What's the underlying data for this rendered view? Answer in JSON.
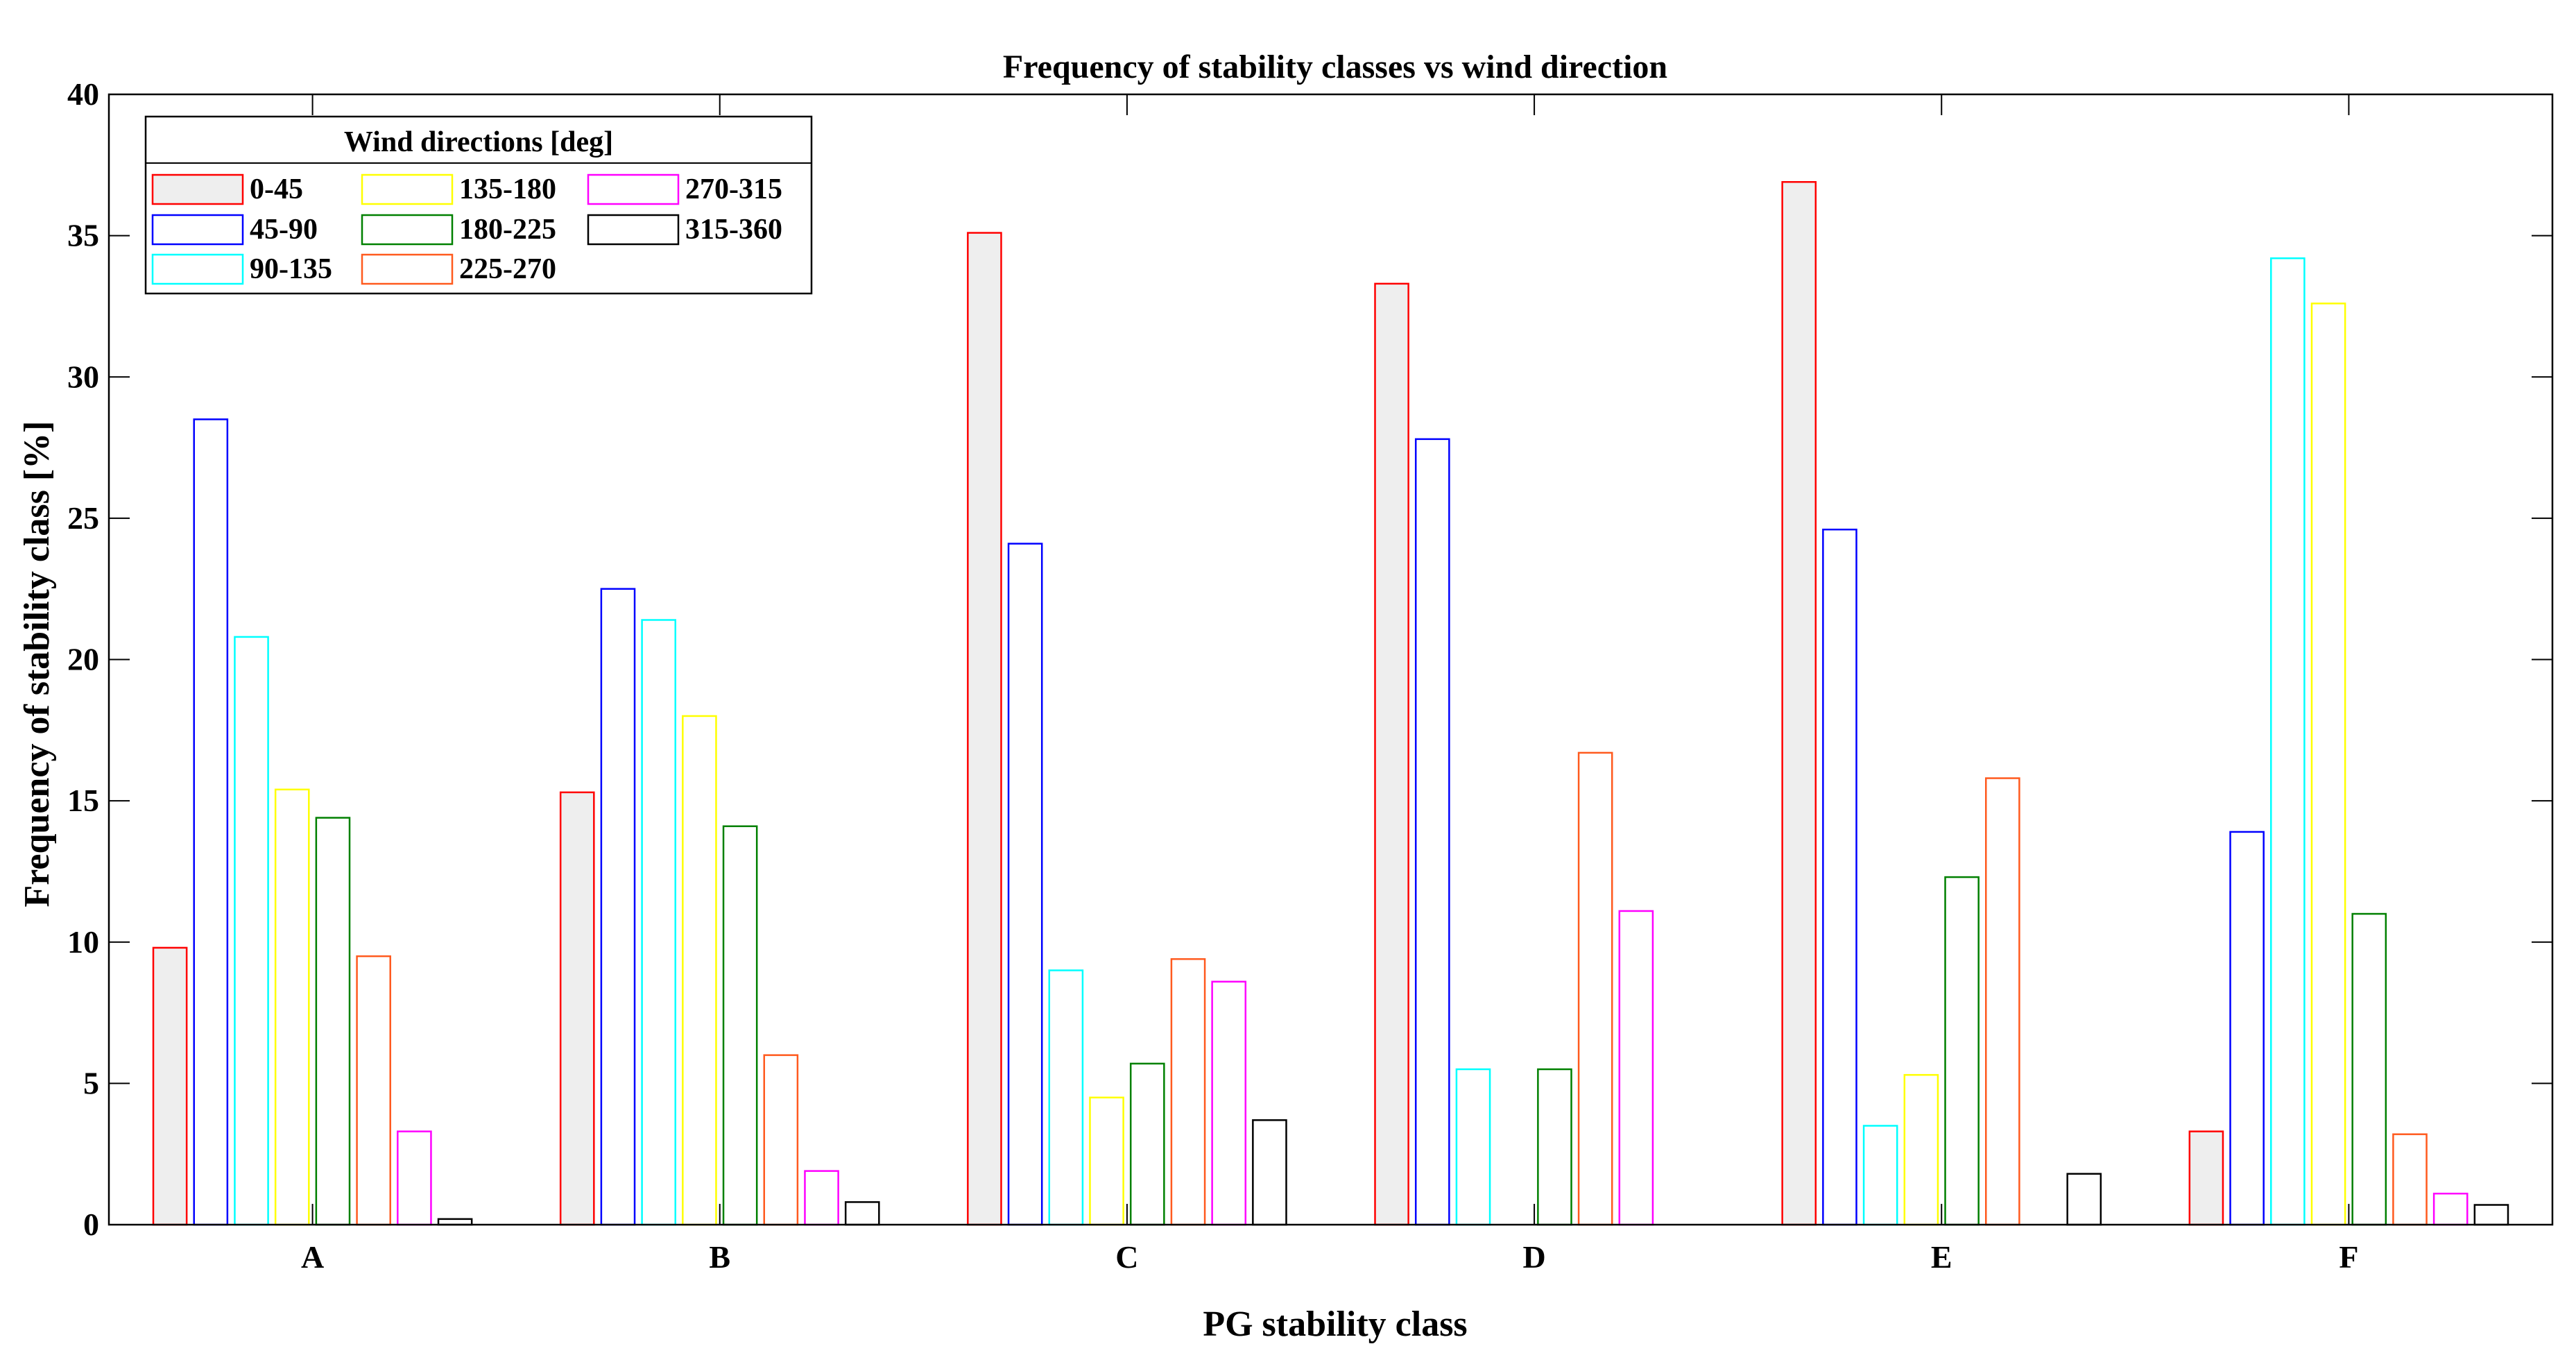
{
  "chart_data": {
    "type": "bar",
    "title": "Frequency of stability classes vs wind direction",
    "xlabel": "PG stability class",
    "ylabel": "Frequency of stability class [%]",
    "ylim": [
      0,
      40
    ],
    "yticks": [
      0,
      5,
      10,
      15,
      20,
      25,
      30,
      35,
      40
    ],
    "categories": [
      "A",
      "B",
      "C",
      "D",
      "E",
      "F"
    ],
    "legend": {
      "title": "Wind directions [deg]",
      "position": "top-left"
    },
    "series": [
      {
        "name": "0-45",
        "color": "#ff0000",
        "fill": "#eeeeee",
        "values": [
          9.8,
          15.3,
          35.1,
          33.3,
          36.9,
          3.3
        ]
      },
      {
        "name": "45-90",
        "color": "#0000ff",
        "fill": "none",
        "values": [
          28.5,
          22.5,
          24.1,
          27.8,
          24.6,
          13.9
        ]
      },
      {
        "name": "90-135",
        "color": "#00ffff",
        "fill": "none",
        "values": [
          20.8,
          21.4,
          9.0,
          5.5,
          3.5,
          34.2
        ]
      },
      {
        "name": "135-180",
        "color": "#ffff00",
        "fill": "none",
        "values": [
          15.4,
          18.0,
          4.5,
          0,
          5.3,
          32.6
        ]
      },
      {
        "name": "180-225",
        "color": "#008000",
        "fill": "none",
        "values": [
          14.4,
          14.1,
          5.7,
          5.5,
          12.3,
          11.0
        ]
      },
      {
        "name": "225-270",
        "color": "#ff5a1e",
        "fill": "none",
        "values": [
          9.5,
          6.0,
          9.4,
          16.7,
          15.8,
          3.2
        ]
      },
      {
        "name": "270-315",
        "color": "#ff00ff",
        "fill": "none",
        "values": [
          3.3,
          1.9,
          8.6,
          11.1,
          0,
          1.1
        ]
      },
      {
        "name": "315-360",
        "color": "#000000",
        "fill": "none",
        "values": [
          0.2,
          0.8,
          3.7,
          0,
          1.8,
          0.7
        ]
      }
    ]
  }
}
